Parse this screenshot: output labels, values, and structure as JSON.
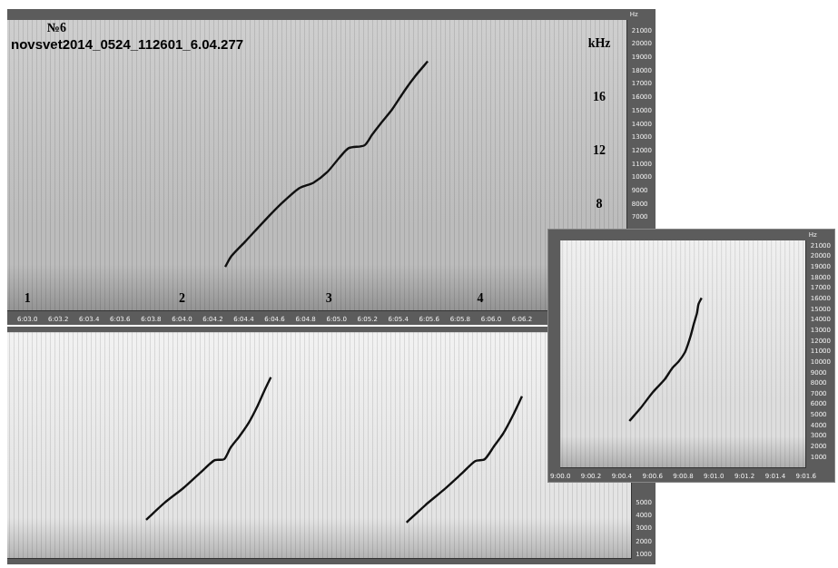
{
  "chart_data": [
    {
      "type": "line",
      "title": "№6",
      "subtitle": "novsvet2014_0524_112601_6.04.277",
      "y_label": "Hz",
      "x": [
        364.28,
        364.32,
        364.41,
        364.53,
        364.64,
        364.76,
        364.85,
        364.94,
        365.02,
        365.08,
        365.18,
        365.23,
        365.29,
        365.36,
        365.44,
        365.51,
        365.59
      ],
      "values": [
        3300,
        4100,
        5200,
        6700,
        8000,
        9200,
        9600,
        10400,
        11500,
        12200,
        12400,
        13200,
        14100,
        15100,
        16500,
        17600,
        18700
      ],
      "color": "#111111",
      "xlim": [
        362.87,
        366.88
      ],
      "xticks": [
        {
          "value": 363,
          "label": "6:03.0"
        },
        {
          "value": 363.2,
          "label": "6:03.2"
        },
        {
          "value": 363.4,
          "label": "6:03.4"
        },
        {
          "value": 363.6,
          "label": "6:03.6"
        },
        {
          "value": 363.8,
          "label": "6:03.8"
        },
        {
          "value": 364,
          "label": "6:04.0"
        },
        {
          "value": 364.2,
          "label": "6:04.2"
        },
        {
          "value": 364.4,
          "label": "6:04.4"
        },
        {
          "value": 364.6,
          "label": "6:04.6"
        },
        {
          "value": 364.8,
          "label": "6:04.8"
        },
        {
          "value": 365,
          "label": "6:05.0"
        },
        {
          "value": 365.2,
          "label": "6:05.2"
        },
        {
          "value": 365.4,
          "label": "6:05.4"
        },
        {
          "value": 365.6,
          "label": "6:05.6"
        },
        {
          "value": 365.8,
          "label": "6:05.8"
        },
        {
          "value": 366,
          "label": "6:06.0"
        },
        {
          "value": 366.2,
          "label": "6:06.2"
        }
      ],
      "ylim": [
        0,
        21800
      ],
      "yticks": [
        7000,
        8000,
        9000,
        10000,
        11000,
        12000,
        13000,
        14000,
        15000,
        16000,
        17000,
        18000,
        19000,
        20000,
        21000
      ],
      "grid": false,
      "annotations": [
        {
          "text": "kHz",
          "x": 366.7,
          "y": 20000
        },
        {
          "text": "16",
          "x": 366.7,
          "y": 16000
        },
        {
          "text": "12",
          "x": 366.7,
          "y": 12000
        },
        {
          "text": "8",
          "x": 366.7,
          "y": 8000
        },
        {
          "text": "1",
          "x": 363.0,
          "y": 900
        },
        {
          "text": "2",
          "x": 364.0,
          "y": 900
        },
        {
          "text": "3",
          "x": 364.95,
          "y": 900
        },
        {
          "text": "4",
          "x": 365.93,
          "y": 900
        }
      ]
    },
    {
      "type": "line",
      "series": [
        {
          "color": "#111111",
          "x": [
            0.89,
            1.01,
            1.13,
            1.24,
            1.33,
            1.39,
            1.43,
            1.49,
            1.55,
            1.6,
            1.65,
            1.69
          ],
          "values": [
            3670,
            4990,
            6110,
            7300,
            8230,
            8300,
            9150,
            10080,
            11130,
            12260,
            13580,
            14570
          ]
        },
        {
          "color": "#111111",
          "x": [
            2.56,
            2.68,
            2.8,
            2.91,
            3.0,
            3.06,
            3.12,
            3.18,
            3.24,
            3.3
          ],
          "values": [
            3470,
            4790,
            5980,
            7170,
            8160,
            8290,
            9280,
            10270,
            11600,
            13110
          ]
        }
      ],
      "xlim": [
        0,
        4
      ],
      "ylim": [
        700,
        18000
      ],
      "yticks": [
        1000,
        2000,
        3000,
        4000,
        5000
      ],
      "tick_labels": "y",
      "grid": false
    },
    {
      "type": "line",
      "y_label": "Hz",
      "x": [
        540.45,
        540.52,
        540.6,
        540.68,
        540.73,
        540.77,
        540.81,
        540.83,
        540.85,
        540.87,
        540.89,
        540.9,
        540.92
      ],
      "values": [
        4430,
        5600,
        7110,
        8370,
        9450,
        10040,
        10880,
        11630,
        12550,
        13640,
        14640,
        15480,
        16060
      ],
      "color": "#111111",
      "xlim": [
        540,
        541.6
      ],
      "xticks": [
        {
          "value": 540,
          "label": "9:00.0"
        },
        {
          "value": 540.2,
          "label": "9:00.2"
        },
        {
          "value": 540.4,
          "label": "9:00.4"
        },
        {
          "value": 540.6,
          "label": "9:00.6"
        },
        {
          "value": 540.8,
          "label": "9:00.8"
        },
        {
          "value": 541,
          "label": "9:01.0"
        },
        {
          "value": 541.2,
          "label": "9:01.2"
        },
        {
          "value": 541.4,
          "label": "9:01.4"
        },
        {
          "value": 541.6,
          "label": "9:01.6"
        }
      ],
      "ylim": [
        0,
        21500
      ],
      "yticks": [
        1000,
        2000,
        3000,
        4000,
        5000,
        6000,
        7000,
        8000,
        9000,
        10000,
        11000,
        12000,
        13000,
        14000,
        15000,
        16000,
        17000,
        18000,
        19000,
        20000,
        21000
      ],
      "grid": false
    }
  ]
}
